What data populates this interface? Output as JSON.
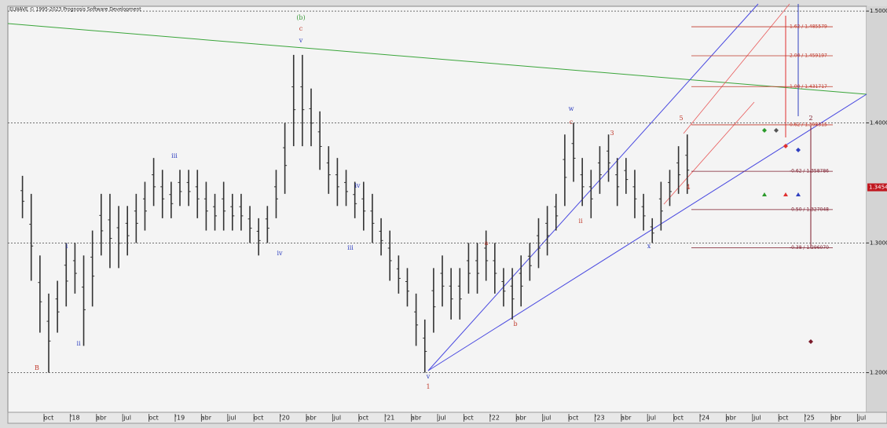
{
  "chart_data": {
    "type": "range",
    "title": "ELWAVE © 1995-2023 Prognosis Software Development",
    "log_scale": true,
    "grid": true,
    "bar_color": "#333333",
    "categories": [
      null,
      null,
      null,
      "oct",
      null,
      null,
      "'18",
      null,
      null,
      "abr",
      null,
      null,
      "jul",
      null,
      null,
      "oct",
      null,
      null,
      "'19",
      null,
      null,
      "abr",
      null,
      null,
      "jul",
      null,
      null,
      "oct",
      null,
      null,
      "'20",
      null,
      null,
      "abr",
      null,
      null,
      "jul",
      null,
      null,
      "oct",
      null,
      null,
      "'21",
      null,
      null,
      "abr",
      null,
      null,
      "jul",
      null,
      null,
      "oct",
      null,
      null,
      "'22",
      null,
      null,
      "abr",
      null,
      null,
      "jul",
      null,
      null,
      "oct",
      null,
      null,
      "'23",
      null,
      null,
      "abr",
      null,
      null,
      "jul",
      null,
      null,
      "oct",
      null,
      null,
      "'24",
      null,
      null,
      "abr",
      null,
      null,
      "jul",
      null,
      null,
      "oct",
      null,
      null,
      "'25",
      null,
      null,
      "abr",
      null,
      null,
      "jul"
    ],
    "high": [
      1.355,
      1.34,
      1.29,
      1.26,
      1.27,
      1.3,
      1.3,
      1.29,
      1.31,
      1.34,
      1.34,
      1.33,
      1.33,
      1.34,
      1.35,
      1.37,
      1.36,
      1.35,
      1.36,
      1.36,
      1.36,
      1.35,
      1.34,
      1.35,
      1.34,
      1.34,
      1.33,
      1.32,
      1.33,
      1.36,
      1.4,
      1.46,
      1.46,
      1.43,
      1.41,
      1.38,
      1.37,
      1.36,
      1.35,
      1.35,
      1.34,
      1.32,
      1.31,
      1.29,
      1.28,
      1.26,
      1.24,
      1.28,
      1.29,
      1.28,
      1.28,
      1.3,
      1.3,
      1.31,
      1.3,
      1.28,
      1.28,
      1.29,
      1.3,
      1.32,
      1.33,
      1.34,
      1.39,
      1.4,
      1.37,
      1.36,
      1.38,
      1.39,
      1.37,
      1.37,
      1.36,
      1.34,
      1.32,
      1.35,
      1.36,
      1.38,
      1.39,
      null,
      null,
      null,
      null,
      null,
      null,
      null,
      null,
      null,
      null,
      null,
      null,
      null,
      null,
      null,
      null,
      null,
      null,
      null,
      null
    ],
    "low": [
      1.32,
      1.27,
      1.23,
      1.2,
      1.23,
      1.25,
      1.26,
      1.22,
      1.25,
      1.29,
      1.28,
      1.28,
      1.29,
      1.3,
      1.31,
      1.33,
      1.32,
      1.32,
      1.33,
      1.33,
      1.32,
      1.31,
      1.31,
      1.31,
      1.31,
      1.31,
      1.3,
      1.29,
      1.3,
      1.32,
      1.34,
      1.38,
      1.38,
      1.38,
      1.36,
      1.34,
      1.33,
      1.33,
      1.32,
      1.31,
      1.3,
      1.29,
      1.27,
      1.26,
      1.25,
      1.22,
      1.2,
      1.23,
      1.25,
      1.24,
      1.24,
      1.26,
      1.26,
      1.27,
      1.26,
      1.25,
      1.24,
      1.25,
      1.27,
      1.28,
      1.29,
      1.31,
      1.33,
      1.35,
      1.33,
      1.32,
      1.34,
      1.35,
      1.33,
      1.34,
      1.32,
      1.31,
      1.3,
      1.31,
      1.33,
      1.34,
      1.34,
      null,
      null,
      null,
      null,
      null,
      null,
      null,
      null,
      null,
      null,
      null,
      null,
      null,
      null,
      null,
      null,
      null,
      null,
      null,
      null
    ],
    "ylim": [
      1.171,
      1.503
    ],
    "yticks": [
      {
        "value": 1.2,
        "label": "1.2000"
      },
      {
        "value": 1.3,
        "label": "1.3000"
      },
      {
        "value": 1.4,
        "label": "1.4000"
      },
      {
        "value": 1.5,
        "label": "1.5000"
      }
    ],
    "last_price": {
      "value": 1.3454,
      "label": "1.3454"
    },
    "fib_levels": [
      {
        "value": 1.485579,
        "label": "1.62 / 1.485579",
        "color": "#c0392b"
      },
      {
        "value": 1.459197,
        "label": "2.00 / 1.459197",
        "color": "#c0392b"
      },
      {
        "value": 1.431717,
        "label": "1.00 / 1.431717",
        "color": "#c0392b"
      },
      {
        "value": 1.398315,
        "label": "0.62 / 1.398315",
        "color": "#c0392b"
      },
      {
        "value": 1.358786,
        "label": "-0.62 / 1.358786",
        "color": "#7b1a2a"
      },
      {
        "value": 1.327048,
        "label": "-0.50 / 1.327048",
        "color": "#7b1a2a"
      },
      {
        "value": 1.29607,
        "label": "-0.38 / 1.296070",
        "color": "#7b1a2a"
      }
    ],
    "wave_labels": [
      {
        "text": "(b)",
        "color": "#3a9a3a"
      },
      {
        "text": "c",
        "color": "#c0392b"
      },
      {
        "text": "v",
        "color": "#2f3fc0"
      },
      {
        "text": "B",
        "color": "#c0392b"
      },
      {
        "text": "i",
        "color": "#2f3fc0"
      },
      {
        "text": "ii",
        "color": "#2f3fc0"
      },
      {
        "text": "iii",
        "color": "#2f3fc0"
      },
      {
        "text": "iv",
        "color": "#2f3fc0"
      },
      {
        "text": "iv",
        "color": "#2f3fc0"
      },
      {
        "text": "iii",
        "color": "#2f3fc0"
      },
      {
        "text": "v",
        "color": "#2f3fc0"
      },
      {
        "text": "1",
        "color": "#c0392b"
      },
      {
        "text": "a",
        "color": "#c0392b"
      },
      {
        "text": "b",
        "color": "#c0392b"
      },
      {
        "text": "w",
        "color": "#2f3fc0"
      },
      {
        "text": "c",
        "color": "#c0392b"
      },
      {
        "text": "3",
        "color": "#c0392b"
      },
      {
        "text": "ii",
        "color": "#c0392b"
      },
      {
        "text": "x",
        "color": "#2f3fc0"
      },
      {
        "text": "4",
        "color": "#c0392b"
      },
      {
        "text": "5",
        "color": "#c0392b"
      },
      {
        "text": "2",
        "color": "#7b1a2a"
      }
    ]
  }
}
